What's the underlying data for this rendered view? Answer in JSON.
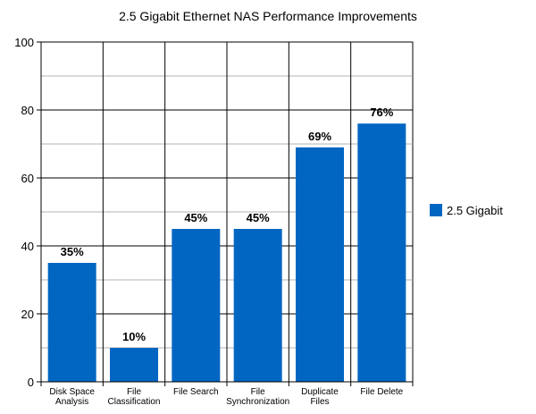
{
  "chart_data": {
    "type": "bar",
    "title": "2.5 Gigabit Ethernet NAS Performance Improvements",
    "categories": [
      [
        "Disk Space",
        "Analysis"
      ],
      [
        "File",
        "Classification"
      ],
      [
        "File Search"
      ],
      [
        "File",
        "Synchronization"
      ],
      [
        "Duplicate",
        "Files"
      ],
      [
        "File Delete"
      ]
    ],
    "series": [
      {
        "name": "2.5 Gigabit",
        "color": "#0066c2",
        "values": [
          35,
          10,
          45,
          45,
          69,
          76
        ],
        "labels": [
          "35%",
          "10%",
          "45%",
          "45%",
          "69%",
          "76%"
        ]
      }
    ],
    "ylim": [
      0,
      100
    ],
    "yticks": [
      0,
      20,
      40,
      60,
      80,
      100
    ],
    "grid": true,
    "legend": "right"
  }
}
